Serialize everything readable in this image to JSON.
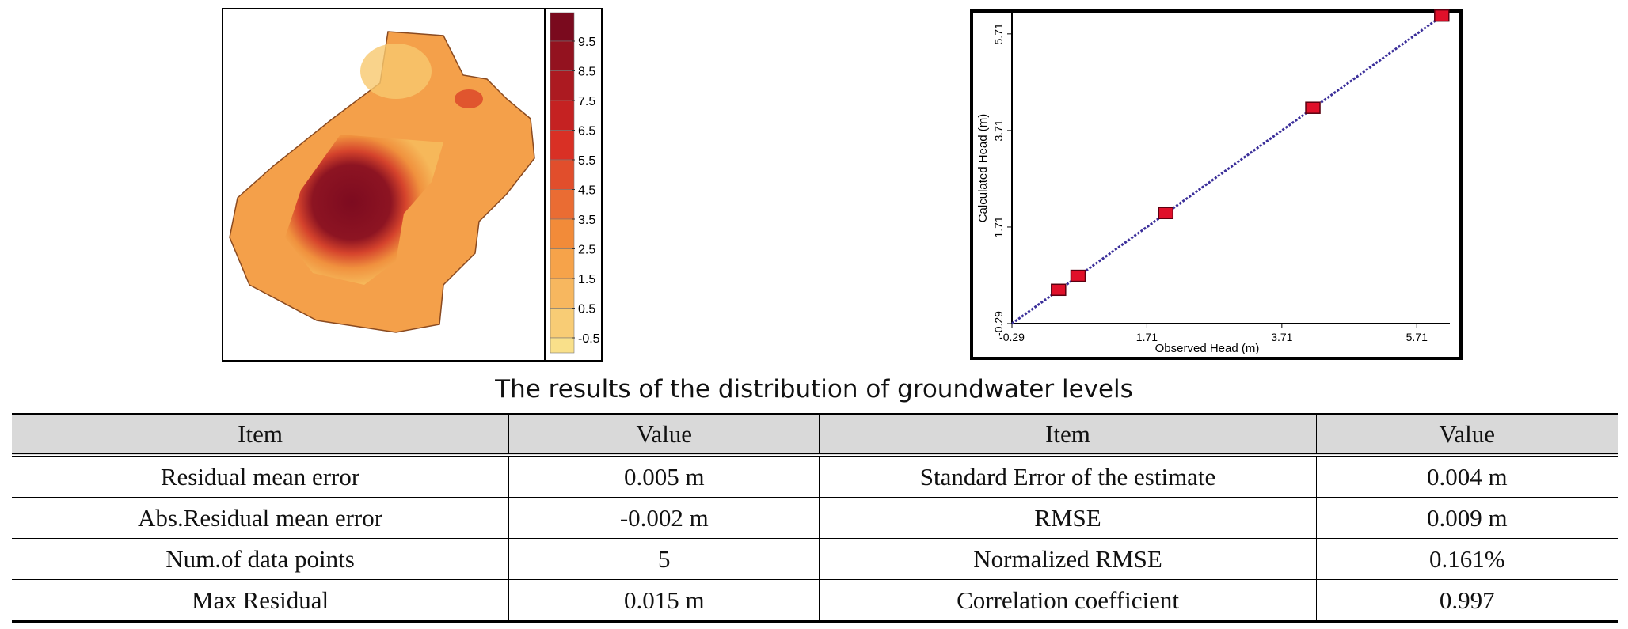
{
  "map": {
    "colorbar_ticks": [
      9.5,
      8.5,
      7.5,
      6.5,
      5.5,
      4.5,
      3.5,
      2.5,
      1.5,
      0.5,
      -0.5
    ]
  },
  "chart_data": {
    "type": "scatter",
    "x_label": "Observed Head (m)",
    "y_label": "Calculated Head (m)",
    "x": [
      0.4,
      0.69,
      1.99,
      4.17,
      6.08
    ],
    "values": [
      0.41,
      0.7,
      2.0,
      4.18,
      6.09
    ],
    "color": "#e0102a",
    "xlim": [
      -0.29,
      6.2
    ],
    "ylim": [
      -0.29,
      6.15
    ],
    "xticks": [
      -0.29,
      1.71,
      3.71,
      5.71
    ],
    "yticks": [
      -0.29,
      1.71,
      3.71,
      5.71
    ]
  },
  "caption": "The results of the distribution of groundwater levels",
  "table": {
    "header": [
      "Item",
      "Value",
      "Item",
      "Value"
    ],
    "rows": [
      [
        "Residual mean error",
        "0.005 m",
        "Standard Error of the estimate",
        "0.004 m"
      ],
      [
        "Abs.Residual mean error",
        "-0.002 m",
        "RMSE",
        "0.009 m"
      ],
      [
        "Num.of data points",
        "5",
        "Normalized RMSE",
        "0.161%"
      ],
      [
        "Max Residual",
        "0.015 m",
        "Correlation coefficient",
        "0.997"
      ]
    ]
  }
}
